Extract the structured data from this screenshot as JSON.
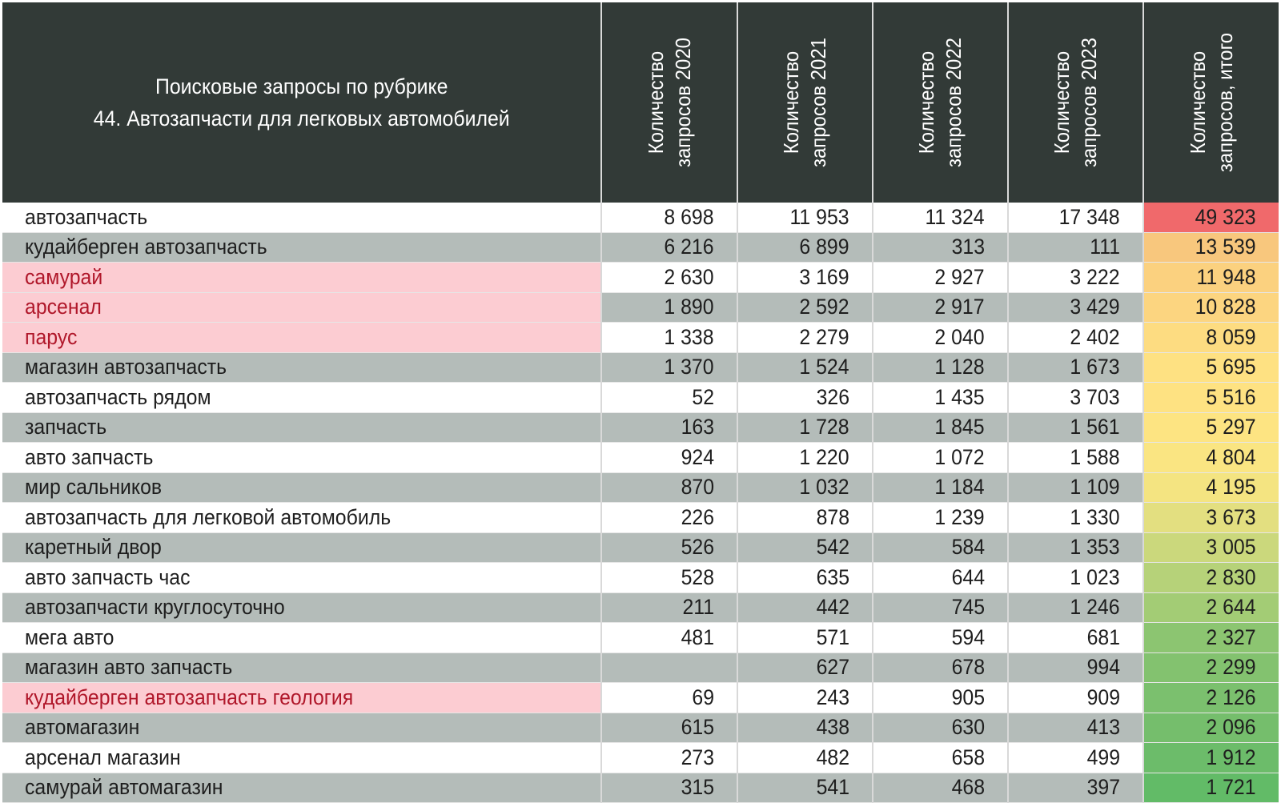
{
  "header": {
    "title_line1": "Поисковые запросы по рубрике",
    "title_line2": "44. Автозапчасти для легковых автомобилей",
    "columns": [
      {
        "line1": "Количество",
        "line2": "запросов 2020"
      },
      {
        "line1": "Количество",
        "line2": "запросов 2021"
      },
      {
        "line1": "Количество",
        "line2": "запросов 2022"
      },
      {
        "line1": "Количество",
        "line2": "запросов 2023"
      },
      {
        "line1": "Количество",
        "line2": "запросов, итого"
      }
    ]
  },
  "colors": {
    "header_bg": "#323a37",
    "row_gray": "#b4bcb9",
    "highlight_bg": "#fcccd2",
    "highlight_text": "#b0172a",
    "total_scale": [
      "#f0696b",
      "#f8c77d",
      "#fde683",
      "#62bb67"
    ]
  },
  "rows": [
    {
      "name": "автозапчасть",
      "y2020": "8 698",
      "y2021": "11 953",
      "y2022": "11 324",
      "y2023": "17 348",
      "total": "49 323",
      "total_color": "#f0696b",
      "highlight": false
    },
    {
      "name": "кудайберген автозапчасть",
      "y2020": "6 216",
      "y2021": "6 899",
      "y2022": "313",
      "y2023": "111",
      "total": "13 539",
      "total_color": "#f8c77d",
      "highlight": false
    },
    {
      "name": "самурай",
      "y2020": "2 630",
      "y2021": "3 169",
      "y2022": "2 927",
      "y2023": "3 222",
      "total": "11 948",
      "total_color": "#fbd17f",
      "highlight": true
    },
    {
      "name": "арсенал",
      "y2020": "1 890",
      "y2021": "2 592",
      "y2022": "2 917",
      "y2023": "3 429",
      "total": "10 828",
      "total_color": "#fcd580",
      "highlight": true
    },
    {
      "name": "парус",
      "y2020": "1 338",
      "y2021": "2 279",
      "y2022": "2 040",
      "y2023": "2 402",
      "total": "8 059",
      "total_color": "#fddc81",
      "highlight": true
    },
    {
      "name": "магазин автозапчасть",
      "y2020": "1 370",
      "y2021": "1 524",
      "y2022": "1 128",
      "y2023": "1 673",
      "total": "5 695",
      "total_color": "#fee182",
      "highlight": false
    },
    {
      "name": "автозапчасть рядом",
      "y2020": "52",
      "y2021": "326",
      "y2022": "1 435",
      "y2023": "3 703",
      "total": "5 516",
      "total_color": "#fee282",
      "highlight": false
    },
    {
      "name": "запчасть",
      "y2020": "163",
      "y2021": "1 728",
      "y2022": "1 845",
      "y2023": "1 561",
      "total": "5 297",
      "total_color": "#fde482",
      "highlight": false
    },
    {
      "name": "авто запчасть",
      "y2020": "924",
      "y2021": "1 220",
      "y2022": "1 072",
      "y2023": "1 588",
      "total": "4 804",
      "total_color": "#fae582",
      "highlight": false
    },
    {
      "name": "мир сальников",
      "y2020": "870",
      "y2021": "1 032",
      "y2022": "1 184",
      "y2023": "1 109",
      "total": "4 195",
      "total_color": "#f4e481",
      "highlight": false
    },
    {
      "name": "автозапчасть для легковой автомобиль",
      "y2020": "226",
      "y2021": "878",
      "y2022": "1 239",
      "y2023": "1 330",
      "total": "3 673",
      "total_color": "#e3df80",
      "highlight": false
    },
    {
      "name": "каретный двор",
      "y2020": "526",
      "y2021": "542",
      "y2022": "584",
      "y2023": "1 353",
      "total": "3 005",
      "total_color": "#cbd87c",
      "highlight": false
    },
    {
      "name": "авто запчасть час",
      "y2020": "528",
      "y2021": "635",
      "y2022": "644",
      "y2023": "1 023",
      "total": "2 830",
      "total_color": "#b6d279",
      "highlight": false
    },
    {
      "name": "автозапчасти круглосуточно",
      "y2020": "211",
      "y2021": "442",
      "y2022": "745",
      "y2023": "1 246",
      "total": "2 644",
      "total_color": "#a3cc75",
      "highlight": false
    },
    {
      "name": "мега авто",
      "y2020": "481",
      "y2021": "571",
      "y2022": "594",
      "y2023": "681",
      "total": "2 327",
      "total_color": "#8cc571",
      "highlight": false
    },
    {
      "name": "магазин авто запчасть",
      "y2020": "",
      "y2021": "627",
      "y2022": "678",
      "y2023": "994",
      "total": "2 299",
      "total_color": "#83c26f",
      "highlight": false
    },
    {
      "name": "кудайберген автозапчасть геология",
      "y2020": "69",
      "y2021": "243",
      "y2022": "905",
      "y2023": "909",
      "total": "2 126",
      "total_color": "#7bc06e",
      "highlight": true
    },
    {
      "name": "автомагазин",
      "y2020": "615",
      "y2021": "438",
      "y2022": "630",
      "y2023": "413",
      "total": "2 096",
      "total_color": "#75be6c",
      "highlight": false
    },
    {
      "name": "арсенал магазин",
      "y2020": "273",
      "y2021": "482",
      "y2022": "658",
      "y2023": "499",
      "total": "1 912",
      "total_color": "#6cbc6a",
      "highlight": false
    },
    {
      "name": "самурай автомагазин",
      "y2020": "315",
      "y2021": "541",
      "y2022": "468",
      "y2023": "397",
      "total": "1 721",
      "total_color": "#62bb67",
      "highlight": false
    }
  ]
}
